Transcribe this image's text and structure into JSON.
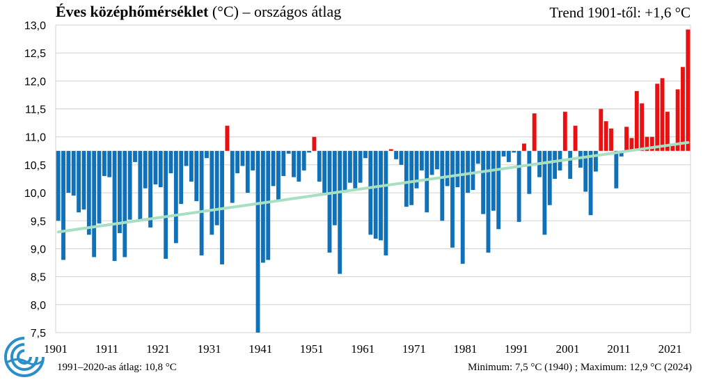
{
  "title": {
    "bold": "Éves középhőmérséklet",
    "rest": " (°C) – országos  átlag"
  },
  "trend_label": "Trend 1901-től: +1,6 °C",
  "avg_note": "1991–2020-as átlag:  10,8 °C",
  "minmax_note": "Minimum:  7,5 °C (1940)  ; Maximum:  12,9 °C (2024)",
  "colors": {
    "below": "#1070b8",
    "above": "#e81010",
    "trend": "#a6e0c0",
    "grid": "#d0d0d0",
    "logo": "#2a8ec8"
  },
  "chart_data": {
    "type": "bar",
    "baseline": 10.75,
    "ylim": [
      7.5,
      13.0
    ],
    "ytick_step": 0.5,
    "yticks": [
      "7,5",
      "8,0",
      "8,5",
      "9,0",
      "9,5",
      "10,0",
      "10,5",
      "11,0",
      "11,5",
      "12,0",
      "12,5",
      "13,0"
    ],
    "xticks": [
      "1901",
      "1911",
      "1921",
      "1931",
      "1941",
      "1951",
      "1961",
      "1971",
      "1981",
      "1991",
      "2001",
      "2011",
      "2021"
    ],
    "start_year": 1901,
    "values": [
      9.5,
      8.8,
      10.0,
      9.95,
      9.65,
      9.7,
      9.25,
      8.85,
      9.45,
      10.3,
      10.28,
      8.78,
      9.28,
      8.85,
      9.52,
      10.55,
      9.52,
      10.08,
      9.38,
      10.15,
      10.1,
      8.82,
      10.35,
      9.1,
      9.8,
      10.48,
      10.2,
      9.85,
      8.88,
      10.62,
      9.25,
      9.42,
      8.72,
      11.2,
      9.82,
      10.35,
      10.48,
      10.0,
      10.4,
      7.5,
      8.75,
      8.8,
      10.12,
      9.85,
      10.3,
      10.7,
      10.28,
      10.2,
      10.4,
      10.72,
      11.0,
      10.2,
      10.0,
      8.93,
      9.42,
      8.55,
      10.05,
      10.18,
      10.08,
      10.18,
      10.62,
      9.25,
      9.18,
      9.15,
      8.88,
      10.78,
      10.6,
      10.5,
      9.75,
      9.78,
      10.08,
      10.4,
      9.65,
      10.32,
      10.42,
      9.5,
      10.12,
      9.02,
      10.1,
      8.73,
      10.0,
      10.05,
      10.52,
      9.62,
      8.93,
      9.68,
      9.35,
      10.65,
      10.55,
      10.72,
      9.48,
      10.88,
      9.98,
      11.42,
      10.28,
      9.25,
      9.78,
      10.25,
      10.4,
      11.45,
      10.25,
      11.2,
      10.45,
      10.02,
      9.6,
      10.38,
      11.5,
      11.28,
      11.15,
      10.08,
      10.65,
      11.18,
      10.98,
      11.82,
      11.6,
      11.0,
      11.0,
      11.95,
      12.05,
      11.45,
      10.85,
      11.85,
      12.25,
      12.92
    ],
    "trend": {
      "from_year": 1901,
      "from_value": 9.3,
      "to_year": 2024,
      "to_value": 10.9
    }
  }
}
